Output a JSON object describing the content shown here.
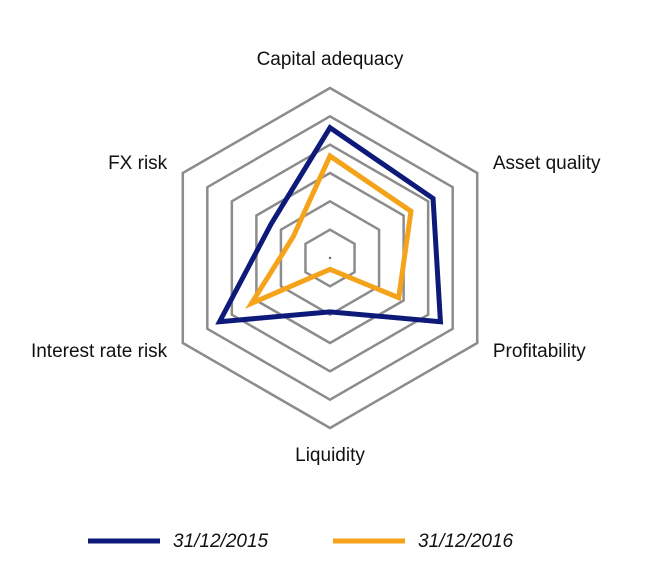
{
  "chart_data": {
    "type": "radar",
    "categories": [
      "Capital adequacy",
      "Asset quality",
      "Profitability",
      "Liquidity",
      "Interest rate risk",
      "FX risk"
    ],
    "rlim": [
      0,
      6
    ],
    "rticks": [
      1,
      2,
      3,
      4,
      5,
      6
    ],
    "grid": true,
    "series": [
      {
        "name": "31/12/2015",
        "color": "#0d1a7a",
        "values": [
          4.6,
          4.2,
          4.5,
          1.9,
          4.5,
          2.4
        ]
      },
      {
        "name": "31/12/2016",
        "color": "#f5a31a",
        "values": [
          3.6,
          3.3,
          2.8,
          0.4,
          3.2,
          1.5
        ]
      }
    ],
    "legend": "bottom"
  }
}
